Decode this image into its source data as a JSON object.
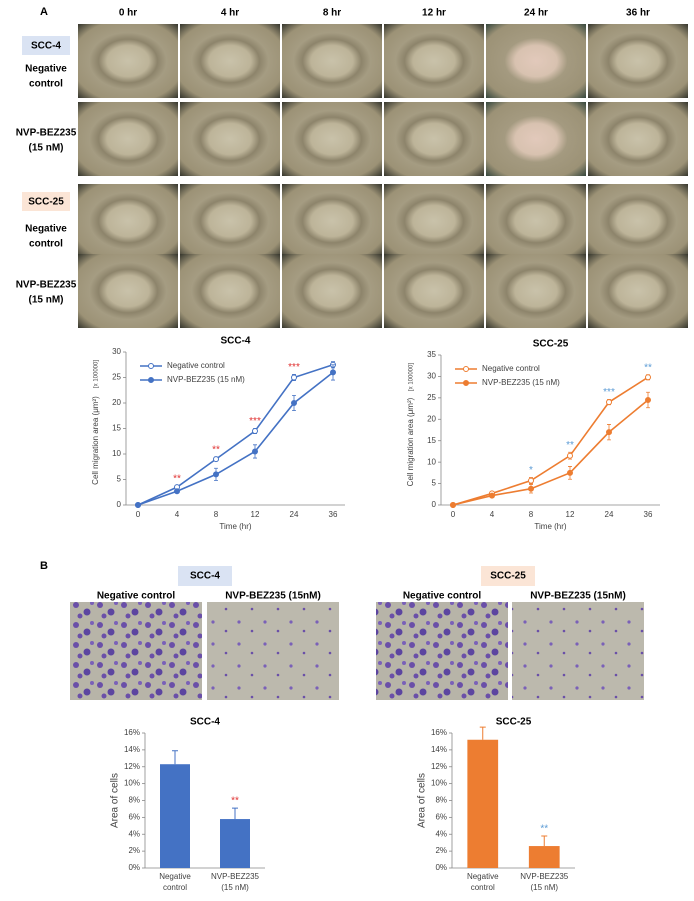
{
  "figure": {
    "panel_a": "A",
    "time_headers": [
      "0 hr",
      "4 hr",
      "8 hr",
      "12 hr",
      "24 hr",
      "36 hr"
    ],
    "groups": [
      {
        "name": "SCC-4",
        "rows": [
          [
            "Negative",
            "control"
          ],
          [
            "NVP-BEZ235",
            "(15 nM)"
          ]
        ]
      },
      {
        "name": "SCC-25",
        "rows": [
          [
            "Negative",
            "control"
          ],
          [
            "NVP-BEZ235",
            "(15 nM)"
          ]
        ]
      }
    ],
    "panel_b": "B",
    "b_groups": [
      {
        "name": "SCC-4",
        "headers": [
          "Negative control",
          "NVP-BEZ235 (15nM)"
        ]
      },
      {
        "name": "SCC-25",
        "headers": [
          "Negative control",
          "NVP-BEZ235 (15nM)"
        ]
      }
    ]
  },
  "chart_data": [
    {
      "type": "line",
      "title": "SCC-4",
      "x_label": "Time (hr)",
      "y_label": "Cell migration area  (μm²)",
      "y_label_unit": "[x 100000]",
      "categories": [
        "0",
        "4",
        "8",
        "12",
        "24",
        "36"
      ],
      "series": [
        {
          "name": "Negative control",
          "color": "#4472c4",
          "marker": "open",
          "values": [
            0,
            3.5,
            9,
            14.5,
            25,
            27.5
          ],
          "errors": [
            0,
            0.3,
            0.4,
            0.5,
            0.6,
            0.6
          ]
        },
        {
          "name": "NVP-BEZ235 (15 nM)",
          "color": "#4472c4",
          "marker": "filled",
          "values": [
            0,
            2.7,
            6,
            10.5,
            20,
            26
          ],
          "errors": [
            0,
            0.3,
            1.2,
            1.3,
            1.5,
            1.5
          ]
        }
      ],
      "significance": [
        null,
        "**",
        "**",
        "***",
        "***",
        null
      ],
      "significance_color": "#e03030",
      "ylim": [
        0,
        30
      ],
      "yticks": [
        0,
        5,
        10,
        15,
        20,
        25,
        30
      ],
      "grid": false,
      "legend": "upper left"
    },
    {
      "type": "line",
      "title": "SCC-25",
      "x_label": "Time (hr)",
      "y_label": "Cell migration area  (μm²)",
      "y_label_unit": "[x 100000]",
      "categories": [
        "0",
        "4",
        "8",
        "12",
        "24",
        "36"
      ],
      "series": [
        {
          "name": "Negative control",
          "color": "#ed7d31",
          "marker": "open",
          "values": [
            0,
            2.7,
            5.7,
            11.5,
            24,
            29.8
          ],
          "errors": [
            0,
            0.3,
            0.7,
            0.8,
            0.6,
            0.6
          ]
        },
        {
          "name": "NVP-BEZ235 (15 nM)",
          "color": "#ed7d31",
          "marker": "filled",
          "values": [
            0,
            2.2,
            3.8,
            7.5,
            17,
            24.5
          ],
          "errors": [
            0,
            0.3,
            1,
            1.5,
            1.8,
            1.8
          ]
        }
      ],
      "significance": [
        null,
        null,
        "*",
        "**",
        "***",
        "**"
      ],
      "significance_color": "#5b9bd5",
      "ylim": [
        0,
        35
      ],
      "yticks": [
        0,
        5,
        10,
        15,
        20,
        25,
        30,
        35
      ],
      "grid": false,
      "legend": "upper left"
    },
    {
      "type": "bar",
      "title": "SCC-4",
      "y_label": "Area of cells",
      "color": "#4472c4",
      "categories": [
        [
          "Negative",
          "control"
        ],
        [
          "NVP-BEZ235",
          "(15 nM)"
        ]
      ],
      "values": [
        12.3,
        5.8
      ],
      "errors": [
        1.6,
        1.3
      ],
      "significance": [
        null,
        "**"
      ],
      "significance_color": "#e03030",
      "ylim": [
        0,
        16
      ],
      "yticks": [
        {
          "value": 0,
          "label": "0%"
        },
        {
          "value": 2,
          "label": "2%"
        },
        {
          "value": 4,
          "label": "4%"
        },
        {
          "value": 6,
          "label": "6%"
        },
        {
          "value": 8,
          "label": "8%"
        },
        {
          "value": 10,
          "label": "10%"
        },
        {
          "value": 12,
          "label": "12%"
        },
        {
          "value": 14,
          "label": "14%"
        },
        {
          "value": 16,
          "label": "16%"
        }
      ],
      "grid": false
    },
    {
      "type": "bar",
      "title": "SCC-25",
      "y_label": "Area of cells",
      "color": "#ed7d31",
      "categories": [
        [
          "Negative",
          "control"
        ],
        [
          "NVP-BEZ235",
          "(15 nM)"
        ]
      ],
      "values": [
        15.2,
        2.6
      ],
      "errors": [
        1.5,
        1.2
      ],
      "significance": [
        null,
        "**"
      ],
      "significance_color": "#5b9bd5",
      "ylim": [
        0,
        16
      ],
      "yticks": [
        {
          "value": 0,
          "label": "0%"
        },
        {
          "value": 2,
          "label": "2%"
        },
        {
          "value": 4,
          "label": "4%"
        },
        {
          "value": 6,
          "label": "6%"
        },
        {
          "value": 8,
          "label": "8%"
        },
        {
          "value": 10,
          "label": "10%"
        },
        {
          "value": 12,
          "label": "12%"
        },
        {
          "value": 14,
          "label": "14%"
        },
        {
          "value": 16,
          "label": "16%"
        }
      ],
      "grid": false
    }
  ]
}
